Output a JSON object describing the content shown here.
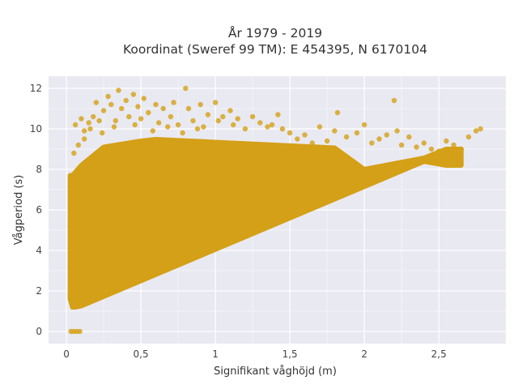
{
  "chart_data": {
    "type": "scatter",
    "title_line1": "År 1979 - 2019",
    "title_line2": "Koordinat (Sweref 99 TM): E 454395, N 6170104",
    "xlabel": "Signifikant våghöjd (m)",
    "ylabel": "Vågperiod (s)",
    "xlim": [
      -0.12,
      2.95
    ],
    "ylim": [
      -0.6,
      12.6
    ],
    "xticks": [
      0,
      0.5,
      1,
      1.5,
      2,
      2.5
    ],
    "xtick_labels": [
      "0",
      "0,5",
      "1",
      "1,5",
      "2",
      "2,5"
    ],
    "yticks": [
      0,
      2,
      4,
      6,
      8,
      10,
      12
    ],
    "ytick_labels": [
      "0",
      "2",
      "4",
      "6",
      "8",
      "10",
      "12"
    ],
    "grid": true,
    "marker_color": "#d4a017",
    "background_color": "#e9e9f1",
    "points": [
      [
        0.03,
        0
      ],
      [
        0.05,
        0
      ],
      [
        0.07,
        0
      ],
      [
        0.09,
        0
      ],
      [
        0.05,
        8.8
      ],
      [
        0.06,
        10.2
      ],
      [
        0.1,
        10.5
      ],
      [
        0.12,
        9.9
      ],
      [
        0.15,
        10.3
      ],
      [
        0.18,
        10.6
      ],
      [
        0.2,
        11.3
      ],
      [
        0.22,
        10.4
      ],
      [
        0.25,
        10.9
      ],
      [
        0.28,
        11.6
      ],
      [
        0.3,
        11.2
      ],
      [
        0.32,
        10.1
      ],
      [
        0.35,
        11.9
      ],
      [
        0.37,
        11.0
      ],
      [
        0.4,
        11.4
      ],
      [
        0.42,
        10.6
      ],
      [
        0.45,
        11.7
      ],
      [
        0.48,
        11.1
      ],
      [
        0.5,
        10.5
      ],
      [
        0.52,
        11.5
      ],
      [
        0.55,
        10.8
      ],
      [
        0.6,
        11.2
      ],
      [
        0.62,
        10.3
      ],
      [
        0.65,
        11.0
      ],
      [
        0.7,
        10.6
      ],
      [
        0.72,
        11.3
      ],
      [
        0.75,
        10.2
      ],
      [
        0.8,
        12.0
      ],
      [
        0.82,
        11.0
      ],
      [
        0.85,
        10.4
      ],
      [
        0.9,
        11.2
      ],
      [
        0.92,
        10.1
      ],
      [
        0.95,
        10.7
      ],
      [
        1.0,
        11.3
      ],
      [
        1.02,
        10.4
      ],
      [
        1.05,
        10.6
      ],
      [
        1.1,
        10.9
      ],
      [
        1.12,
        10.2
      ],
      [
        1.15,
        10.5
      ],
      [
        1.2,
        10.0
      ],
      [
        1.25,
        10.6
      ],
      [
        1.3,
        10.3
      ],
      [
        1.35,
        10.1
      ],
      [
        1.38,
        10.2
      ],
      [
        1.42,
        10.7
      ],
      [
        1.45,
        10.0
      ],
      [
        1.5,
        9.8
      ],
      [
        1.55,
        9.5
      ],
      [
        1.6,
        9.7
      ],
      [
        1.65,
        9.3
      ],
      [
        1.7,
        10.1
      ],
      [
        1.75,
        9.4
      ],
      [
        1.8,
        9.9
      ],
      [
        1.82,
        10.8
      ],
      [
        1.88,
        9.6
      ],
      [
        1.95,
        9.8
      ],
      [
        2.0,
        10.2
      ],
      [
        2.05,
        9.3
      ],
      [
        2.1,
        9.5
      ],
      [
        2.15,
        9.7
      ],
      [
        2.2,
        11.4
      ],
      [
        2.22,
        9.9
      ],
      [
        2.25,
        9.2
      ],
      [
        2.3,
        9.6
      ],
      [
        2.35,
        9.1
      ],
      [
        2.4,
        9.3
      ],
      [
        2.45,
        9.0
      ],
      [
        2.5,
        8.9
      ],
      [
        2.55,
        9.4
      ],
      [
        2.6,
        9.2
      ],
      [
        2.65,
        9.0
      ],
      [
        2.7,
        9.6
      ],
      [
        2.75,
        9.9
      ],
      [
        2.78,
        10.0
      ],
      [
        0.08,
        9.2
      ],
      [
        0.12,
        9.5
      ],
      [
        0.16,
        10.0
      ],
      [
        0.24,
        9.8
      ],
      [
        0.33,
        10.4
      ],
      [
        0.46,
        10.2
      ],
      [
        0.58,
        9.9
      ],
      [
        0.68,
        10.1
      ],
      [
        0.78,
        9.8
      ],
      [
        0.88,
        10.0
      ]
    ]
  }
}
